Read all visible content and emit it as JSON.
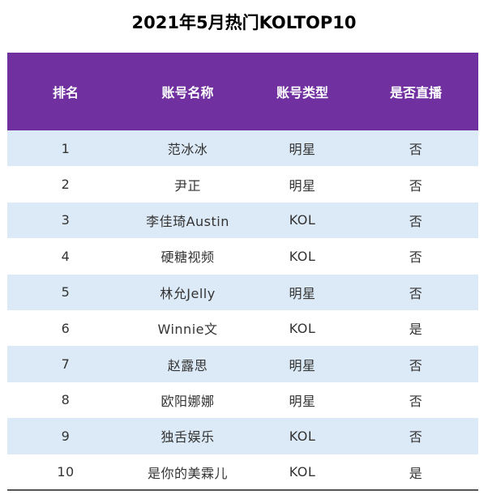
{
  "title": "2021年5月热门KOLTOP10",
  "columns": [
    "排名",
    "账号名称",
    "账号类型",
    "是否直播"
  ],
  "rows": [
    [
      "1",
      "范冰冰",
      "明星",
      "否"
    ],
    [
      "2",
      "尹正",
      "明星",
      "否"
    ],
    [
      "3",
      "李佳琦Austin",
      "KOL",
      "否"
    ],
    [
      "4",
      "硬糖视频",
      "KOL",
      "否"
    ],
    [
      "5",
      "林允Jelly",
      "明星",
      "否"
    ],
    [
      "6",
      "Winnie文",
      "KOL",
      "是"
    ],
    [
      "7",
      "赵露思",
      "明星",
      "否"
    ],
    [
      "8",
      "欧阳娜娜",
      "明星",
      "否"
    ],
    [
      "9",
      "独舌娱乐",
      "KOL",
      "否"
    ],
    [
      "10",
      "是你的美霖儿",
      "KOL",
      "是"
    ]
  ],
  "colors": {
    "header_bg": "#7030a0",
    "header_text": "#ffffff",
    "stripe_bg": "#dce9f6",
    "body_text": "#333333"
  }
}
